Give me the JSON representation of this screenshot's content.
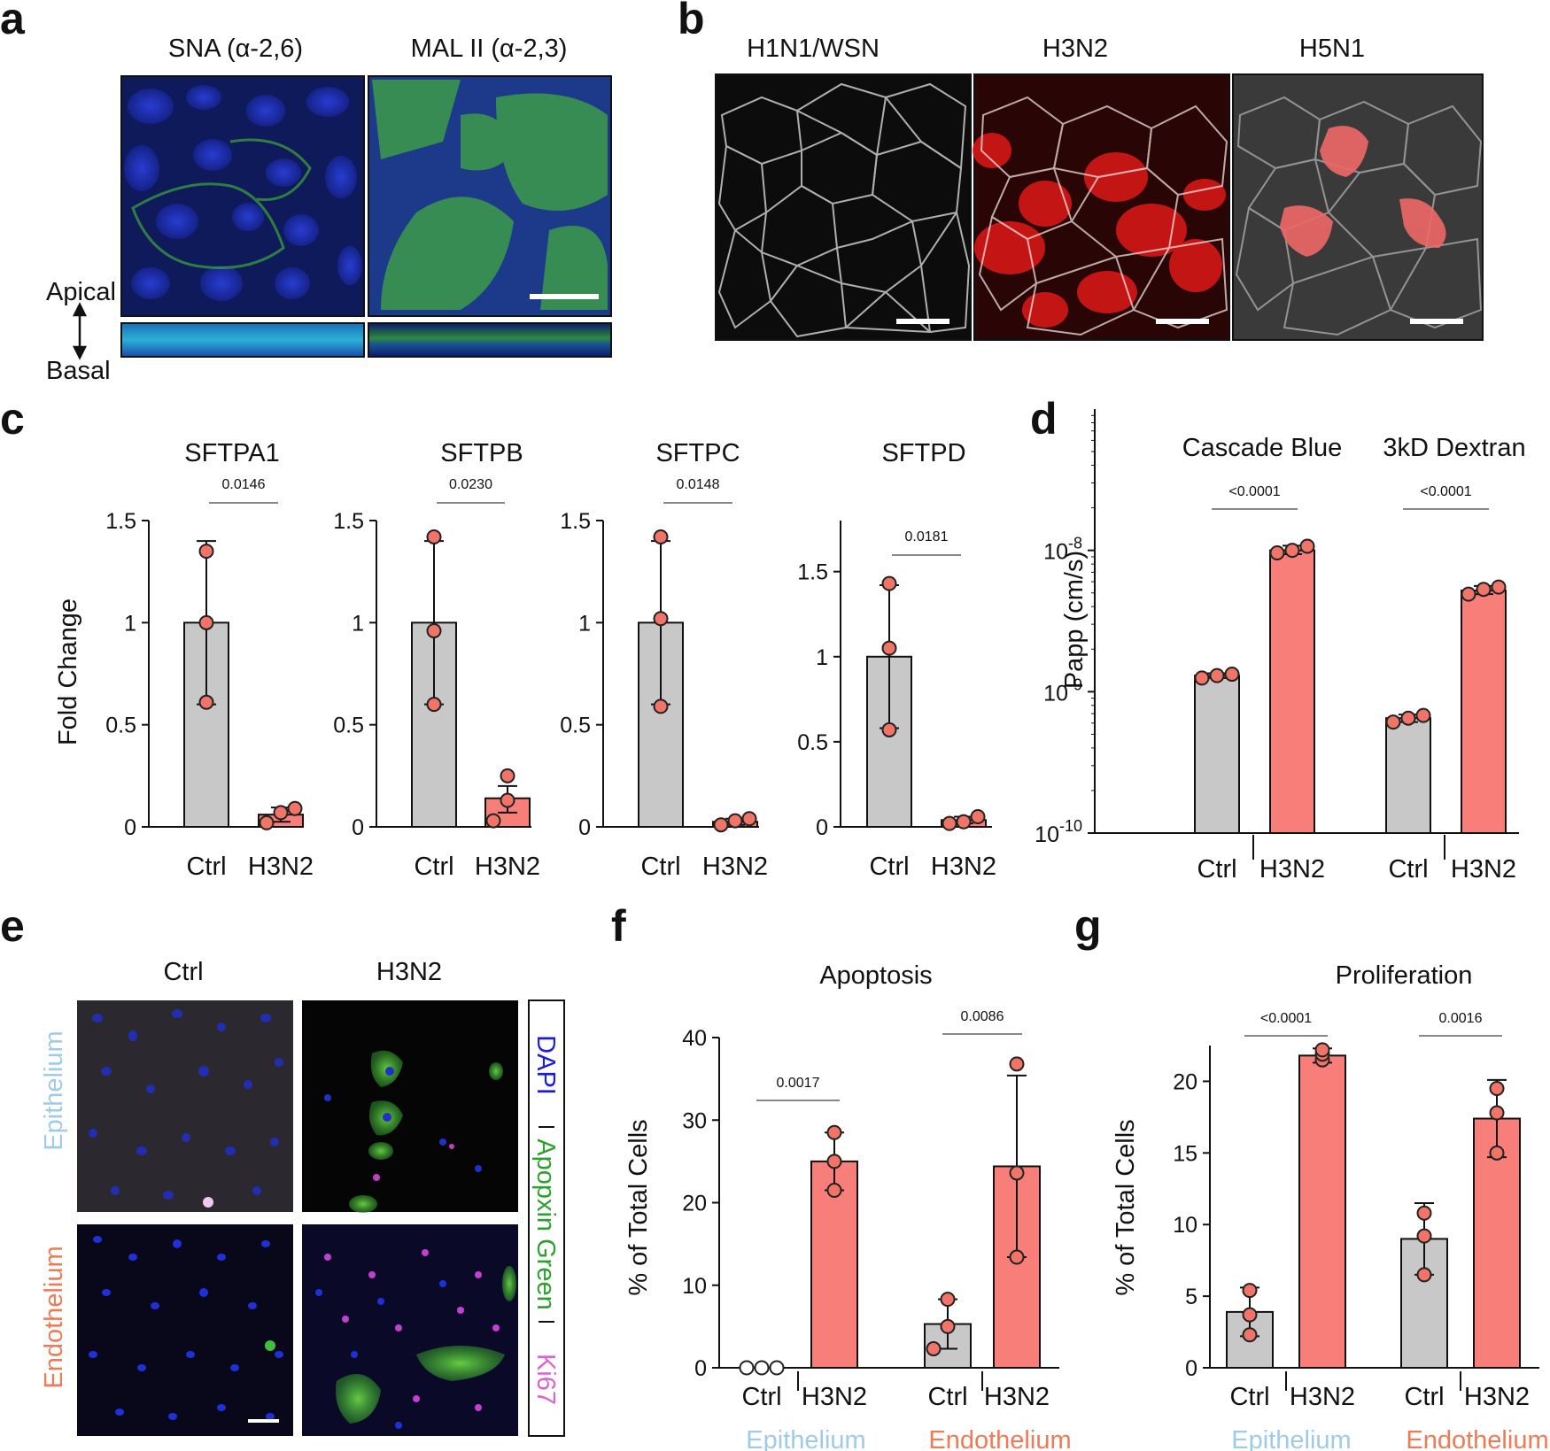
{
  "panel_a": {
    "label": "a",
    "titles": [
      "SNA (α-2,6)",
      "MAL II (α-2,3)"
    ],
    "apical": "Apical",
    "basal": "Basal"
  },
  "panel_b": {
    "label": "b",
    "titles": [
      "H1N1/WSN",
      "H3N2",
      "H5N1"
    ]
  },
  "panel_e": {
    "label": "e",
    "columns": [
      "Ctrl",
      "H3N2"
    ],
    "rows": [
      "Epithelium",
      "Endothelium"
    ],
    "legend": [
      "DAPI",
      "Apopxin Green",
      "Ki67"
    ],
    "colors": {
      "epithelium": "#9ecbe9",
      "endothelium": "#f07a55",
      "dapi": "#1a1ae6",
      "apopxin": "#2ca02c",
      "ki67": "#e060d0"
    }
  },
  "colors": {
    "ctrl": "#c8c8c8",
    "h3n2": "#f87e79",
    "point": "#f07468"
  },
  "chart_data": [
    {
      "panel": "c",
      "type": "bar",
      "title": "SFTPA1",
      "ylabel": "Fold Change",
      "categories": [
        "Ctrl",
        "H3N2"
      ],
      "ylim": [
        0,
        1.5
      ],
      "yticks": [
        "0",
        "0.5",
        "1",
        "1.5"
      ],
      "values": [
        1.0,
        0.06
      ],
      "err_hi": [
        1.4,
        0.095
      ],
      "err_lo": [
        0.6,
        0.025
      ],
      "points": [
        [
          0.61,
          1.0,
          1.35
        ],
        [
          0.02,
          0.07,
          0.09
        ]
      ],
      "pvalue": "0.0146"
    },
    {
      "panel": "c",
      "type": "bar",
      "title": "SFTPB",
      "categories": [
        "Ctrl",
        "H3N2"
      ],
      "ylim": [
        0,
        1.5
      ],
      "yticks": [
        "0",
        "0.5",
        "1",
        "1.5"
      ],
      "values": [
        1.0,
        0.14
      ],
      "err_hi": [
        1.4,
        0.2
      ],
      "err_lo": [
        0.6,
        0.07
      ],
      "points": [
        [
          0.6,
          0.96,
          1.42
        ],
        [
          0.03,
          0.13,
          0.25
        ]
      ],
      "pvalue": "0.0230"
    },
    {
      "panel": "c",
      "type": "bar",
      "title": "SFTPC",
      "categories": [
        "Ctrl",
        "H3N2"
      ],
      "ylim": [
        0,
        1.5
      ],
      "yticks": [
        "0",
        "0.5",
        "1",
        "1.5"
      ],
      "values": [
        1.0,
        0.025
      ],
      "err_hi": [
        1.4,
        0.04
      ],
      "err_lo": [
        0.6,
        0.01
      ],
      "points": [
        [
          0.59,
          1.02,
          1.42
        ],
        [
          0.01,
          0.03,
          0.04
        ]
      ],
      "pvalue": "0.0148"
    },
    {
      "panel": "c",
      "type": "bar",
      "title": "SFTPD",
      "categories": [
        "Ctrl",
        "H3N2"
      ],
      "ylim": [
        0,
        1.8
      ],
      "yticks": [
        "0",
        "0.5",
        "1",
        "1.5"
      ],
      "values": [
        1.0,
        0.04
      ],
      "err_hi": [
        1.42,
        0.06
      ],
      "err_lo": [
        0.58,
        0.02
      ],
      "points": [
        [
          0.57,
          1.05,
          1.43
        ],
        [
          0.02,
          0.03,
          0.06
        ]
      ],
      "pvalue": "0.0181"
    },
    {
      "panel": "d",
      "type": "bar",
      "log_y": true,
      "ylabel": "Papp (cm/s)",
      "ylim": [
        1e-10,
        1e-07
      ],
      "groups": [
        "Cascade Blue",
        "3kD Dextran"
      ],
      "categories": [
        "Ctrl",
        "H3N2",
        "Ctrl",
        "H3N2"
      ],
      "values": [
        1.3e-09,
        1e-08,
        6.5e-10,
        5.2e-09
      ],
      "err_hi": [
        1.35e-09,
        1.08e-08,
        6.9e-10,
        5.6e-09
      ],
      "err_lo": [
        1.25e-09,
        9.4e-09,
        6.1e-10,
        4.9e-09
      ],
      "points": [
        [
          1.25e-09,
          1.3e-09,
          1.33e-09
        ],
        [
          9.6e-09,
          1e-08,
          1.07e-08
        ],
        [
          6.1e-10,
          6.5e-10,
          6.8e-10
        ],
        [
          4.9e-09,
          5.3e-09,
          5.5e-09
        ]
      ],
      "pvalues": [
        "<0.0001",
        "<0.0001"
      ]
    },
    {
      "panel": "f",
      "type": "bar",
      "title": "Apoptosis",
      "ylabel": "% of Total Cells",
      "ylim": [
        0,
        40
      ],
      "yticks": [
        "0",
        "10",
        "20",
        "30",
        "40"
      ],
      "groups": [
        "Epithelium",
        "Endothelium"
      ],
      "categories": [
        "Ctrl",
        "H3N2",
        "Ctrl",
        "H3N2"
      ],
      "values": [
        0,
        25,
        5.3,
        24.4
      ],
      "err_hi": [
        0,
        28.5,
        8.3,
        35.4
      ],
      "err_lo": [
        0,
        21.5,
        2.3,
        13.4
      ],
      "points": [
        [
          0,
          0,
          0
        ],
        [
          21.5,
          25,
          28.5
        ],
        [
          2.3,
          5,
          8.3
        ],
        [
          13.4,
          23.6,
          36.8
        ]
      ],
      "pvalues": [
        "0.0017",
        "0.0086"
      ]
    },
    {
      "panel": "g",
      "type": "bar",
      "title": "Proliferation",
      "ylabel": "% of Total Cells",
      "ylim": [
        0,
        22.5
      ],
      "yticks": [
        "0",
        "5",
        "10",
        "15",
        "20"
      ],
      "groups": [
        "Epithelium",
        "Endothelium"
      ],
      "categories": [
        "Ctrl",
        "H3N2",
        "Ctrl",
        "H3N2"
      ],
      "values": [
        3.9,
        21.8,
        9,
        17.4
      ],
      "err_hi": [
        5.6,
        22.3,
        11.5,
        20.1
      ],
      "err_lo": [
        2.2,
        21.3,
        6.5,
        14.7
      ],
      "points": [
        [
          2.3,
          3.7,
          5.4
        ],
        [
          21.5,
          21.9,
          22.2
        ],
        [
          6.5,
          9.2,
          10.8
        ],
        [
          15,
          17.8,
          19.5
        ]
      ],
      "pvalues": [
        "<0.0001",
        "0.0016"
      ]
    }
  ]
}
